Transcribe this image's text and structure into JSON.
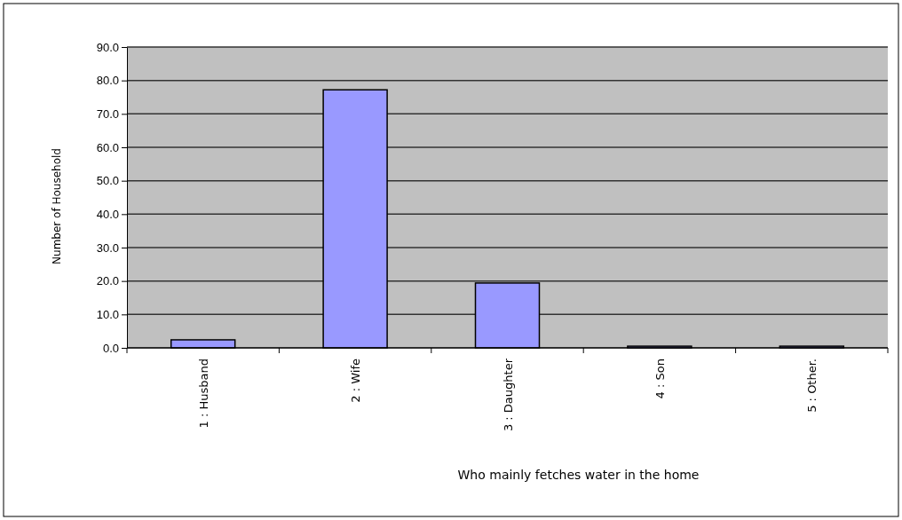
{
  "chart_data": {
    "type": "bar",
    "xlabel": "Who mainly fetches water in the home",
    "ylabel": "Number of Household",
    "categories": [
      "1 : Husband",
      "2 : Wife",
      "3 : Daughter",
      "4 : Son",
      "5 : Other."
    ],
    "values": [
      2.4,
      77.2,
      19.4,
      0.5,
      0.5
    ],
    "color": "#9999ff",
    "ylim": [
      0,
      90
    ],
    "yticks": [
      {
        "value": 0,
        "label": "0.0"
      },
      {
        "value": 10,
        "label": "10.0"
      },
      {
        "value": 20,
        "label": "20.0"
      },
      {
        "value": 30,
        "label": "30.0"
      },
      {
        "value": 40,
        "label": "40.0"
      },
      {
        "value": 50,
        "label": "50.0"
      },
      {
        "value": 60,
        "label": "60.0"
      },
      {
        "value": 70,
        "label": "70.0"
      },
      {
        "value": 80,
        "label": "80.0"
      },
      {
        "value": 90,
        "label": "90.0"
      }
    ],
    "grid": "y"
  }
}
